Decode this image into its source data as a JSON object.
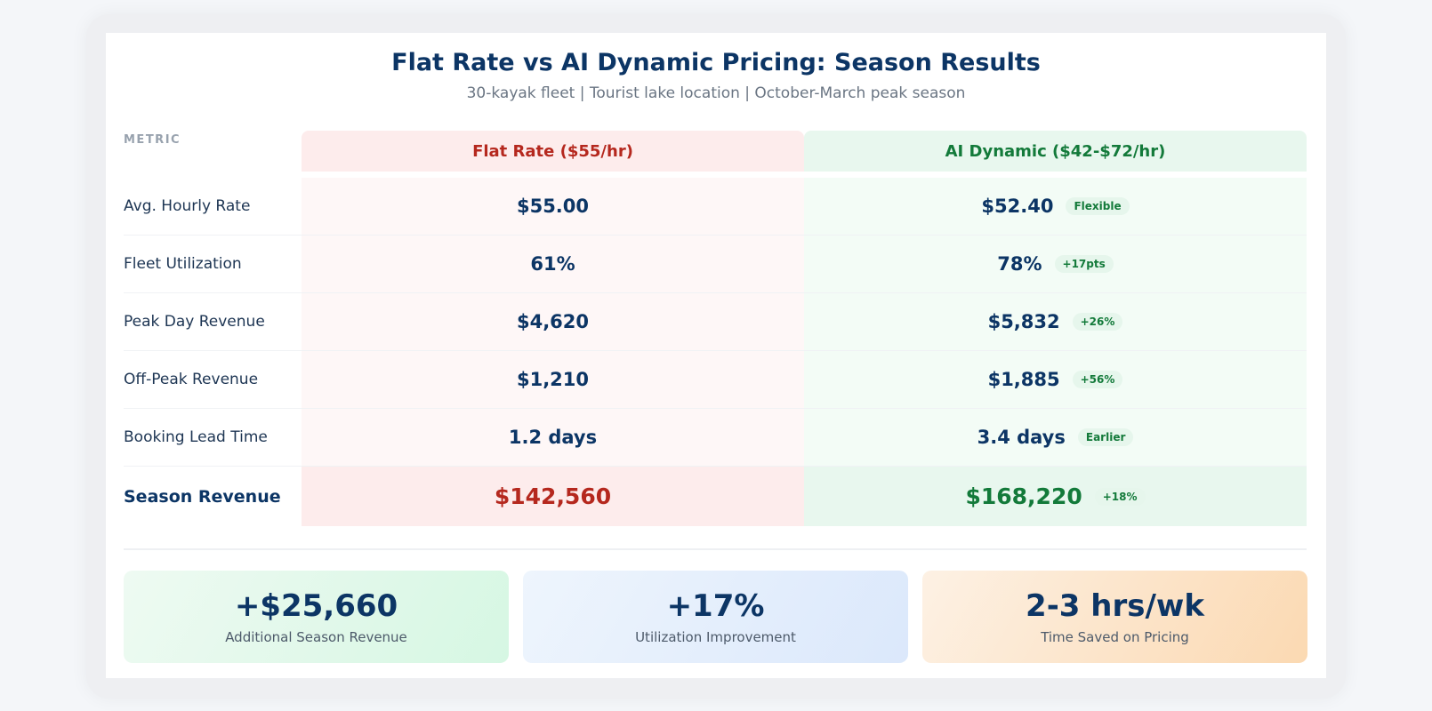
{
  "header": {
    "title": "Flat Rate vs AI Dynamic Pricing: Season Results",
    "subtitle": "30-kayak fleet | Tourist lake location | October-March peak season"
  },
  "table": {
    "metric_header": "METRIC",
    "flat_header": "Flat Rate ($55/hr)",
    "ai_header": "AI Dynamic ($42-$72/hr)",
    "rows": [
      {
        "label": "Avg. Hourly Rate",
        "flat": "$55.00",
        "ai": "$52.40",
        "badge": "Flexible"
      },
      {
        "label": "Fleet Utilization",
        "flat": "61%",
        "ai": "78%",
        "badge": "+17pts"
      },
      {
        "label": "Peak Day Revenue",
        "flat": "$4,620",
        "ai": "$5,832",
        "badge": "+26%"
      },
      {
        "label": "Off-Peak Revenue",
        "flat": "$1,210",
        "ai": "$1,885",
        "badge": "+56%"
      },
      {
        "label": "Booking Lead Time",
        "flat": "1.2 days",
        "ai": "3.4 days",
        "badge": "Earlier"
      }
    ],
    "total": {
      "label": "Season Revenue",
      "flat": "$142,560",
      "ai": "$168,220",
      "badge": "+18%"
    }
  },
  "kpis": [
    {
      "value": "+$25,660",
      "label": "Additional Season Revenue"
    },
    {
      "value": "+17%",
      "label": "Utilization Improvement"
    },
    {
      "value": "2-3 hrs/wk",
      "label": "Time Saved on Pricing"
    }
  ],
  "colors": {
    "navy": "#0c3565",
    "flat_red": "#b5281e",
    "ai_green": "#137a3a",
    "flat_bg": "#fdecec",
    "ai_bg": "#e8f7ee"
  }
}
